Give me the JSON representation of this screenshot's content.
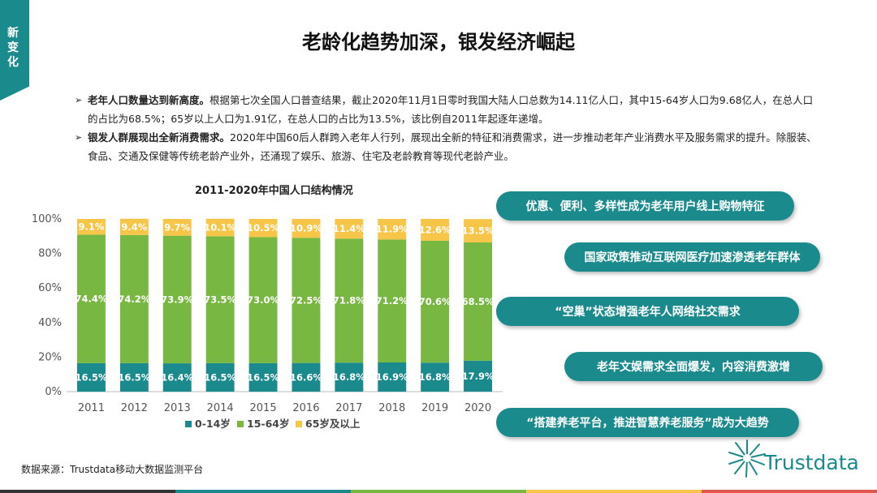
{
  "side_tab": "新变化",
  "title": "老龄化趋势加深，银发经济崛起",
  "bullets": [
    {
      "bold": "老年人口数量达到新高度。",
      "text": "根据第七次全国人口普查结果，截止2020年11月1日零时我国大陆人口总数为14.11亿人口，其中15-64岁人口为9.68亿人，在总人口的占比为68.5%；65岁以上人口为1.91亿，在总人口的占比为13.5%，该比例自2011年起逐年递增。"
    },
    {
      "bold": "银发人群展现出全新消费需求。",
      "text": "2020年中国60后人群跨入老年人行列，展现出全新的特征和消费需求，进一步推动老年产业消费水平及服务需求的提升。除服装、食品、交通及保健等传统老龄产业外，还涌现了娱乐、旅游、住宅及老龄教育等现代老龄产业。"
    }
  ],
  "chart_data": {
    "type": "bar",
    "stacked": true,
    "title": "2011-2020年中国人口结构情况",
    "categories": [
      "2011",
      "2012",
      "2013",
      "2014",
      "2015",
      "2016",
      "2017",
      "2018",
      "2019",
      "2020"
    ],
    "series": [
      {
        "name": "0-14岁",
        "color": "#1a8a8d",
        "values": [
          16.5,
          16.5,
          16.4,
          16.5,
          16.5,
          16.6,
          16.8,
          16.9,
          16.8,
          17.9
        ]
      },
      {
        "name": "15-64岁",
        "color": "#79b743",
        "values": [
          74.4,
          74.2,
          73.9,
          73.5,
          73.0,
          72.5,
          71.8,
          71.2,
          70.6,
          68.5
        ]
      },
      {
        "name": "65岁及以上",
        "color": "#f7c548",
        "values": [
          9.1,
          9.4,
          9.7,
          10.1,
          10.5,
          10.9,
          11.4,
          11.9,
          12.6,
          13.5
        ]
      }
    ],
    "ylim": [
      0,
      100
    ],
    "yticks": [
      "0%",
      "20%",
      "40%",
      "60%",
      "80%",
      "100%"
    ],
    "legend": "bottom"
  },
  "pills": [
    "优惠、便利、多样性成为老年用户线上购物特征",
    "国家政策推动互联网医疗加速渗透老年群体",
    "“空巢”状态增强老年人网络社交需求",
    "老年文娱需求全面爆发，内容消费激增",
    "“搭建养老平台，推进智慧养老服务”成为大趋势"
  ],
  "source": "数据来源：Trustdata移动大数据监测平台",
  "logo": "Trustdata",
  "colors": {
    "teal": "#1a8a8d",
    "green": "#79b743",
    "yellow": "#f7c548",
    "dark": "#333333",
    "red": "#e0574f"
  }
}
